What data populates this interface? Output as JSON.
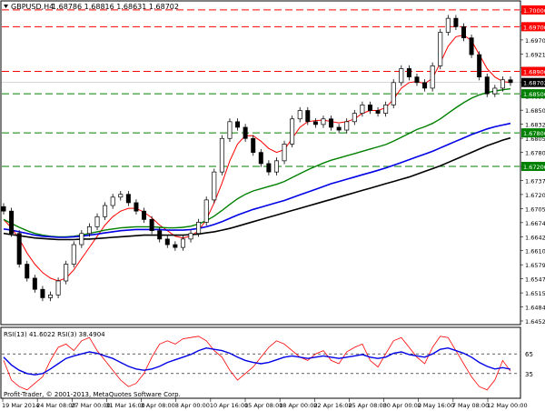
{
  "header": {
    "symbol": "GBPUSD,H4",
    "ohlc": "1.68786 1.68816 1.68631 1.68702"
  },
  "rsi_panel": {
    "label": "RSI(13) 41.6022  RSI(3) 38.4904",
    "copyright": "Profit-Trader, © 2001-2013, MetaQuotes Software Corp.",
    "levels": [
      65,
      35
    ],
    "level_labels": [
      "65",
      "35"
    ],
    "rsi13_color": "#0000e6",
    "rsi3_color": "#ff0000"
  },
  "price_axis": {
    "labels": [
      "1.70000",
      "1.69950",
      "1.69700",
      "1.69210",
      "1.68900",
      "1.68702",
      "1.68580",
      "1.68500",
      "1.68320",
      "1.68050",
      "1.67800",
      "1.67690",
      "1.67370",
      "1.67200",
      "1.67050",
      "1.66740",
      "1.66420",
      "1.66100",
      "1.65790",
      "1.65470",
      "1.65150",
      "1.64840",
      "1.64520"
    ]
  },
  "time_axis": {
    "labels": [
      "19 Mar 2014",
      "24 Mar 08:00",
      "27 Mar 00:00",
      "31 Mar 16:00",
      "3 Apr 08:00",
      "8 Apr 00:00",
      "10 Apr 16:00",
      "15 Apr 08:00",
      "18 Apr 00:00",
      "22 Apr 16:00",
      "25 Apr 08:00",
      "30 Apr 00:00",
      "2 May 16:00",
      "7 May 08:00",
      "12 May 00:00"
    ]
  },
  "colors": {
    "bull_candle": "#ffffff",
    "bear_candle": "#000000",
    "ma_red": "#ff0000",
    "ma_green": "#008000",
    "ma_blue": "#0000e6",
    "ma_black": "#000000",
    "resistance_line": "#ff0000",
    "support_line": "#008000",
    "badge_red": "#ff0000",
    "badge_green": "#008000",
    "badge_current": "#000000"
  },
  "chart_data": {
    "type": "line",
    "symbol": "GBPUSD",
    "timeframe": "H4",
    "ylim": [
      1.6445,
      1.7008
    ],
    "horizontal_levels": [
      {
        "price": 1.7,
        "label": "1.70000",
        "color": "#ff0000"
      },
      {
        "price": 1.697,
        "label": "1.69700",
        "color": "#ff0000"
      },
      {
        "price": 1.689,
        "label": "1.68900",
        "color": "#ff0000"
      },
      {
        "price": 1.685,
        "label": "1.68500",
        "color": "#008000"
      },
      {
        "price": 1.678,
        "label": "1.67800",
        "color": "#008000"
      },
      {
        "price": 1.672,
        "label": "1.67200",
        "color": "#008000"
      }
    ],
    "current_price": 1.68702,
    "price_series": [
      1.664,
      1.66,
      1.6545,
      1.652,
      1.65,
      1.6485,
      1.649,
      1.6515,
      1.6545,
      1.658,
      1.66,
      1.6612,
      1.663,
      1.665,
      1.6665,
      1.667,
      1.6655,
      1.664,
      1.6625,
      1.6605,
      1.659,
      1.658,
      1.6575,
      1.659,
      1.66,
      1.662,
      1.666,
      1.671,
      1.677,
      1.68,
      1.679,
      1.677,
      1.6745,
      1.6725,
      1.671,
      1.673,
      1.676,
      1.6805,
      1.682,
      1.68,
      1.6795,
      1.6805,
      1.679,
      1.6785,
      1.68,
      1.6815,
      1.683,
      1.682,
      1.6815,
      1.683,
      1.687,
      1.6895,
      1.688,
      1.687,
      1.686,
      1.69,
      1.696,
      1.6985,
      1.697,
      1.695,
      1.692,
      1.688,
      1.685,
      1.686,
      1.6875,
      1.687
    ],
    "series": [
      {
        "values": [
          1.6625,
          1.661,
          1.659,
          1.6565,
          1.6545,
          1.653,
          1.652,
          1.6515,
          1.652,
          1.6535,
          1.6555,
          1.6575,
          1.6595,
          1.6615,
          1.663,
          1.664,
          1.6645,
          1.6645,
          1.6638,
          1.6628,
          1.6615,
          1.6605,
          1.6595,
          1.6592,
          1.6595,
          1.6605,
          1.6625,
          1.6655,
          1.669,
          1.673,
          1.676,
          1.6775,
          1.6775,
          1.6765,
          1.6752,
          1.6745,
          1.675,
          1.677,
          1.679,
          1.68,
          1.6802,
          1.6803,
          1.68,
          1.6798,
          1.68,
          1.6805,
          1.6815,
          1.682,
          1.682,
          1.6825,
          1.684,
          1.686,
          1.687,
          1.6872,
          1.6868,
          1.6878,
          1.6905,
          1.6935,
          1.6952,
          1.6955,
          1.6945,
          1.692,
          1.6895,
          1.688,
          1.6872,
          1.687
        ]
      },
      {
        "values": [
          1.6625,
          1.6618,
          1.6611,
          1.6605,
          1.66,
          1.6597,
          1.6595,
          1.6594,
          1.6594,
          1.6595,
          1.6597,
          1.66,
          1.6603,
          1.6606,
          1.6608,
          1.661,
          1.6611,
          1.6612,
          1.6612,
          1.6612,
          1.6611,
          1.661,
          1.661,
          1.6611,
          1.6613,
          1.6617,
          1.6623,
          1.6631,
          1.6641,
          1.6652,
          1.6662,
          1.667,
          1.6676,
          1.668,
          1.6684,
          1.6688,
          1.6693,
          1.67,
          1.6707,
          1.6714,
          1.672,
          1.6726,
          1.6731,
          1.6735,
          1.6739,
          1.6743,
          1.6747,
          1.6751,
          1.6755,
          1.6759,
          1.6765,
          1.6772,
          1.6779,
          1.6786,
          1.6791,
          1.6797,
          1.6805,
          1.6815,
          1.6825,
          1.6834,
          1.6842,
          1.6848,
          1.6852,
          1.6855,
          1.6857,
          1.6859
        ]
      },
      {
        "values": [
          1.6608,
          1.6606,
          1.6603,
          1.66,
          1.6597,
          1.6595,
          1.6594,
          1.6593,
          1.6593,
          1.6594,
          1.6595,
          1.6597,
          1.6599,
          1.6601,
          1.6603,
          1.6605,
          1.6606,
          1.6607,
          1.6607,
          1.6607,
          1.6607,
          1.6606,
          1.6606,
          1.6606,
          1.6607,
          1.6609,
          1.6612,
          1.6616,
          1.6621,
          1.6627,
          1.6633,
          1.6638,
          1.6643,
          1.6647,
          1.6651,
          1.6655,
          1.6659,
          1.6664,
          1.6669,
          1.6674,
          1.6679,
          1.6684,
          1.6689,
          1.6693,
          1.6697,
          1.6701,
          1.6705,
          1.6709,
          1.6713,
          1.6717,
          1.6722,
          1.6727,
          1.6732,
          1.6737,
          1.6742,
          1.6747,
          1.6753,
          1.6759,
          1.6765,
          1.6771,
          1.6777,
          1.6782,
          1.6787,
          1.6791,
          1.6794,
          1.6797
        ]
      },
      {
        "values": [
          1.66,
          1.6598,
          1.6596,
          1.6594,
          1.6592,
          1.6591,
          1.659,
          1.6589,
          1.6589,
          1.6589,
          1.659,
          1.659,
          1.6591,
          1.6592,
          1.6593,
          1.6594,
          1.6595,
          1.6596,
          1.6597,
          1.6597,
          1.6597,
          1.6597,
          1.6597,
          1.6597,
          1.6598,
          1.6599,
          1.6601,
          1.6603,
          1.6606,
          1.6609,
          1.6613,
          1.6617,
          1.6621,
          1.6625,
          1.6629,
          1.6633,
          1.6637,
          1.6641,
          1.6645,
          1.6649,
          1.6653,
          1.6657,
          1.6661,
          1.6665,
          1.6669,
          1.6673,
          1.6677,
          1.6681,
          1.6685,
          1.6689,
          1.6693,
          1.6697,
          1.6701,
          1.6706,
          1.6711,
          1.6716,
          1.6721,
          1.6727,
          1.6733,
          1.6739,
          1.6745,
          1.6751,
          1.6757,
          1.6762,
          1.6767,
          1.6771
        ]
      }
    ],
    "rsi": {
      "ylim": [
        0,
        100
      ],
      "rsi13": [
        60,
        48,
        40,
        35,
        33,
        35,
        42,
        50,
        58,
        62,
        65,
        68,
        66,
        62,
        58,
        52,
        46,
        42,
        40,
        42,
        46,
        52,
        56,
        60,
        64,
        70,
        74,
        72,
        70,
        66,
        60,
        55,
        52,
        50,
        52,
        56,
        60,
        62,
        60,
        58,
        60,
        62,
        60,
        58,
        60,
        62,
        64,
        60,
        58,
        60,
        66,
        68,
        64,
        62,
        60,
        65,
        72,
        74,
        70,
        66,
        60,
        52,
        46,
        42,
        44,
        41.6
      ],
      "rsi3": [
        55,
        25,
        15,
        10,
        20,
        30,
        55,
        75,
        80,
        70,
        85,
        90,
        70,
        55,
        40,
        25,
        15,
        20,
        35,
        60,
        80,
        85,
        80,
        88,
        90,
        92,
        85,
        70,
        60,
        40,
        25,
        35,
        45,
        60,
        75,
        85,
        80,
        70,
        60,
        55,
        65,
        70,
        55,
        50,
        68,
        75,
        80,
        55,
        45,
        65,
        85,
        90,
        75,
        60,
        50,
        75,
        92,
        90,
        70,
        50,
        30,
        15,
        10,
        25,
        55,
        38.5
      ]
    }
  }
}
